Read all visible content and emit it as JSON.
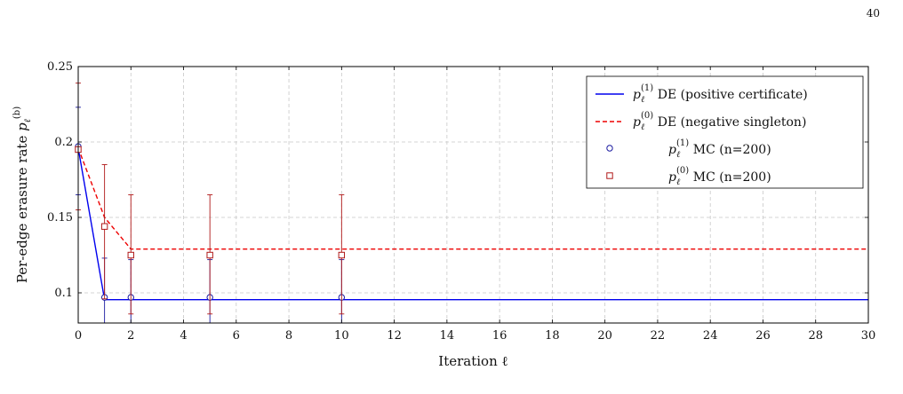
{
  "page_number": "40",
  "chart_data": {
    "type": "line",
    "xlabel": "Iteration ℓ",
    "ylabel": "Per-edge erasure rate p_ℓ^(b)",
    "ylabel_main": "Per-edge erasure rate ",
    "ylabel_sym": "p",
    "ylabel_sub": "ℓ",
    "ylabel_sup": "(b)",
    "xlim": [
      0,
      30
    ],
    "ylim": [
      0.08,
      0.25
    ],
    "xticks": [
      0,
      2,
      4,
      6,
      8,
      10,
      12,
      14,
      16,
      18,
      20,
      22,
      24,
      26,
      28,
      30
    ],
    "yticks": [
      0.1,
      0.15,
      0.2,
      0.25
    ],
    "ytick_labels": [
      "0.1",
      "0.15",
      "0.2",
      "0.25"
    ],
    "grid": true,
    "grid_style": "dashed",
    "legend_position": "top-right",
    "series": [
      {
        "name": "p_ℓ^(1) DE (positive certificate)",
        "legend_sym": "p",
        "legend_sub": "ℓ",
        "legend_sup": "(1)",
        "legend_rest": " DE (positive certificate)",
        "kind": "line",
        "style": "solid",
        "color": "#0000ee",
        "x": [
          0,
          1,
          2,
          3,
          4,
          5,
          6,
          7,
          8,
          9,
          10,
          11,
          12,
          13,
          14,
          15,
          16,
          17,
          18,
          19,
          20,
          21,
          22,
          23,
          24,
          25,
          26,
          27,
          28,
          29,
          30
        ],
        "y": [
          0.196,
          0.0955,
          0.0955,
          0.0955,
          0.0955,
          0.0955,
          0.0955,
          0.0955,
          0.0955,
          0.0955,
          0.0955,
          0.0955,
          0.0955,
          0.0955,
          0.0955,
          0.0955,
          0.0955,
          0.0955,
          0.0955,
          0.0955,
          0.0955,
          0.0955,
          0.0955,
          0.0955,
          0.0955,
          0.0955,
          0.0955,
          0.0955,
          0.0955,
          0.0955,
          0.0955
        ]
      },
      {
        "name": "p_ℓ^(0) DE (negative singleton)",
        "legend_sym": "p",
        "legend_sub": "ℓ",
        "legend_sup": "(0)",
        "legend_rest": " DE (negative singleton)",
        "kind": "line",
        "style": "dashed",
        "color": "#ee0000",
        "x": [
          0,
          1,
          2,
          3,
          4,
          5,
          6,
          7,
          8,
          9,
          10,
          11,
          12,
          13,
          14,
          15,
          16,
          17,
          18,
          19,
          20,
          21,
          22,
          23,
          24,
          25,
          26,
          27,
          28,
          29,
          30
        ],
        "y": [
          0.196,
          0.15,
          0.129,
          0.129,
          0.129,
          0.129,
          0.129,
          0.129,
          0.129,
          0.129,
          0.129,
          0.129,
          0.129,
          0.129,
          0.129,
          0.129,
          0.129,
          0.129,
          0.129,
          0.129,
          0.129,
          0.129,
          0.129,
          0.129,
          0.129,
          0.129,
          0.129,
          0.129,
          0.129,
          0.129,
          0.129
        ]
      },
      {
        "name": "p_ℓ^(1) MC (n=200)",
        "legend_sym": "p",
        "legend_sub": "ℓ",
        "legend_sup": "(1)",
        "legend_rest": " MC (n=200)",
        "kind": "scatter",
        "marker": "circle",
        "color": "#1a1aa0",
        "x": [
          0,
          1,
          2,
          5,
          10
        ],
        "y": [
          0.197,
          0.097,
          0.097,
          0.097,
          0.097
        ],
        "err_low": [
          0.165,
          0.043,
          0.012,
          0.011,
          0.011
        ],
        "err_high": [
          0.223,
          0.123,
          0.122,
          0.122,
          0.122
        ]
      },
      {
        "name": "p_ℓ^(0) MC (n=200)",
        "legend_sym": "p",
        "legend_sub": "ℓ",
        "legend_sup": "(0)",
        "legend_rest": " MC (n=200)",
        "kind": "scatter",
        "marker": "square",
        "color": "#b01818",
        "x": [
          0,
          1,
          2,
          5,
          10
        ],
        "y": [
          0.195,
          0.144,
          0.125,
          0.125,
          0.125
        ],
        "err_low": [
          0.155,
          0.096,
          0.086,
          0.086,
          0.086
        ],
        "err_high": [
          0.239,
          0.185,
          0.165,
          0.165,
          0.165
        ]
      }
    ]
  }
}
